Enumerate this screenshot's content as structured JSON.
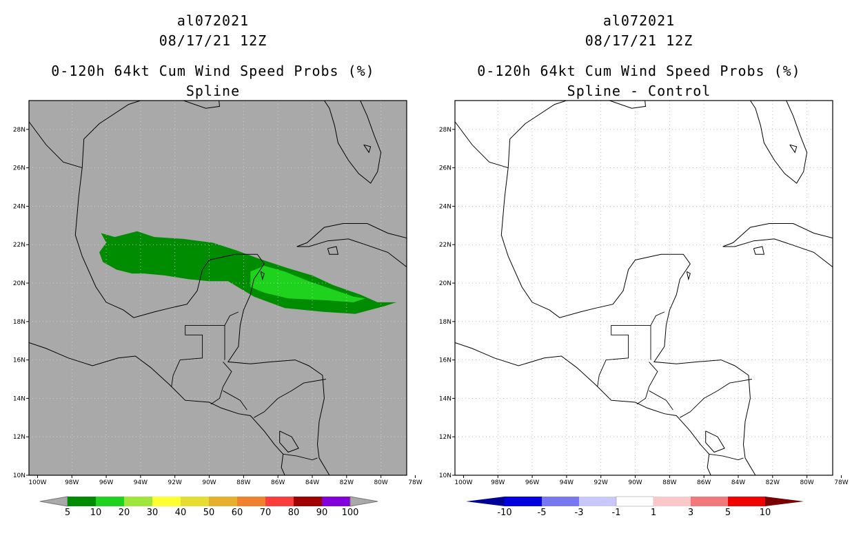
{
  "left": {
    "titles": [
      "al072021",
      "08/17/21 12Z",
      "0-120h 64kt Cum Wind Speed Probs (%)",
      "Spline"
    ],
    "background": "#a9a9a9",
    "colorbar": {
      "colors": [
        "#008c00",
        "#1ed21e",
        "#9fe63c",
        "#ffff32",
        "#e6dc32",
        "#e6af2d",
        "#f0822d",
        "#fa3c3c",
        "#a00000",
        "#8200dc"
      ],
      "labels": [
        "5",
        "10",
        "20",
        "30",
        "40",
        "50",
        "60",
        "70",
        "80",
        "90",
        "100"
      ]
    }
  },
  "right": {
    "titles": [
      "al072021",
      "08/17/21 12Z",
      "0-120h 64kt Cum Wind Speed Probs (%)",
      "Spline - Control"
    ],
    "background": "#ffffff",
    "colorbar": {
      "colors": [
        "#0000e1",
        "#7878f0",
        "#c8c8fa",
        "#ffffff",
        "#fac8c8",
        "#f07878",
        "#f00000"
      ],
      "end_left": "#000096",
      "end_right": "#780000",
      "labels": [
        "-10",
        "-5",
        "-3",
        "-1",
        "1",
        "3",
        "5",
        "10"
      ]
    }
  },
  "axes": {
    "lon_labels": [
      "100W",
      "98W",
      "96W",
      "94W",
      "92W",
      "90W",
      "88W",
      "86W",
      "84W",
      "82W",
      "80W",
      "78W"
    ],
    "lat_labels": [
      "10N",
      "12N",
      "14N",
      "16N",
      "18N",
      "20N",
      "22N",
      "24N",
      "26N",
      "28N"
    ]
  }
}
